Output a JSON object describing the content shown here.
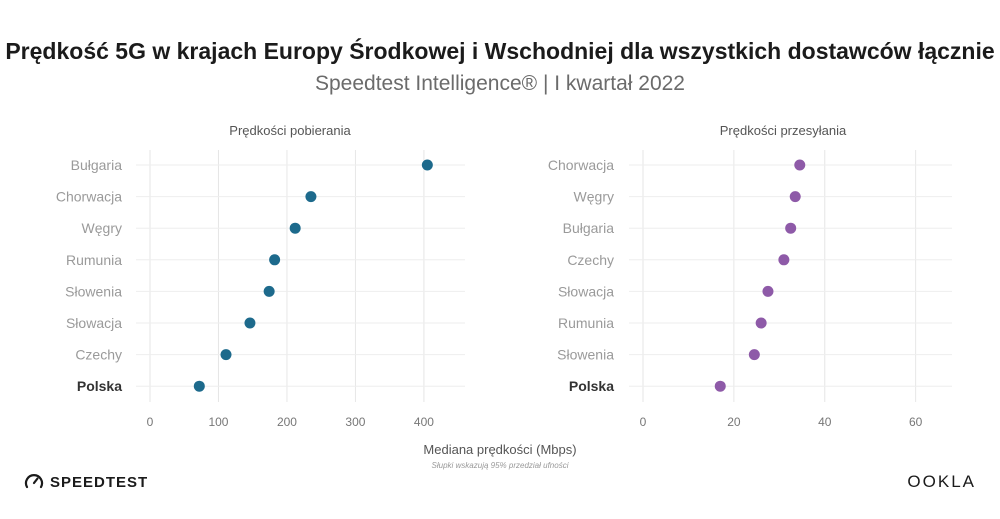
{
  "title": "Prędkość  5G w krajach Europy Środkowej i Wschodniej dla wszystkich dostawców łącznie",
  "subtitle": "Speedtest Intelligence® | I kwartał 2022",
  "xlabel": "Mediana prędkości (Mbps)",
  "footnote": "Słupki wskazują 95% przedział ufności",
  "brand_left": "SPEEDTEST",
  "brand_right": "OOKLA",
  "colors": {
    "download": "#1d6a8c",
    "upload": "#8e5aa8"
  },
  "chart_data": [
    {
      "type": "scatter",
      "title": "Prędkości pobierania",
      "categories": [
        "Bułgaria",
        "Chorwacja",
        "Węgry",
        "Rumunia",
        "Słowenia",
        "Słowacja",
        "Czechy",
        "Polska"
      ],
      "values": [
        405,
        235,
        212,
        182,
        174,
        146,
        111,
        72
      ],
      "ci": [
        [
          398,
          412
        ],
        [
          231,
          239
        ],
        [
          205,
          219
        ],
        [
          179,
          185
        ],
        [
          171,
          177
        ],
        [
          143,
          149
        ],
        [
          108,
          114
        ],
        [
          69,
          75
        ]
      ],
      "highlight": "Polska",
      "xlim": [
        0,
        460
      ],
      "xticks": [
        0,
        100,
        200,
        300,
        400
      ]
    },
    {
      "type": "scatter",
      "title": "Prędkości przesyłania",
      "categories": [
        "Chorwacja",
        "Węgry",
        "Bułgaria",
        "Czechy",
        "Słowacja",
        "Rumunia",
        "Słowenia",
        "Polska"
      ],
      "values": [
        34.5,
        33.5,
        32.5,
        31,
        27.5,
        26,
        24.5,
        17
      ],
      "highlight": "Polska",
      "xlim": [
        0,
        68
      ],
      "xticks": [
        0,
        20,
        40,
        60
      ]
    }
  ]
}
